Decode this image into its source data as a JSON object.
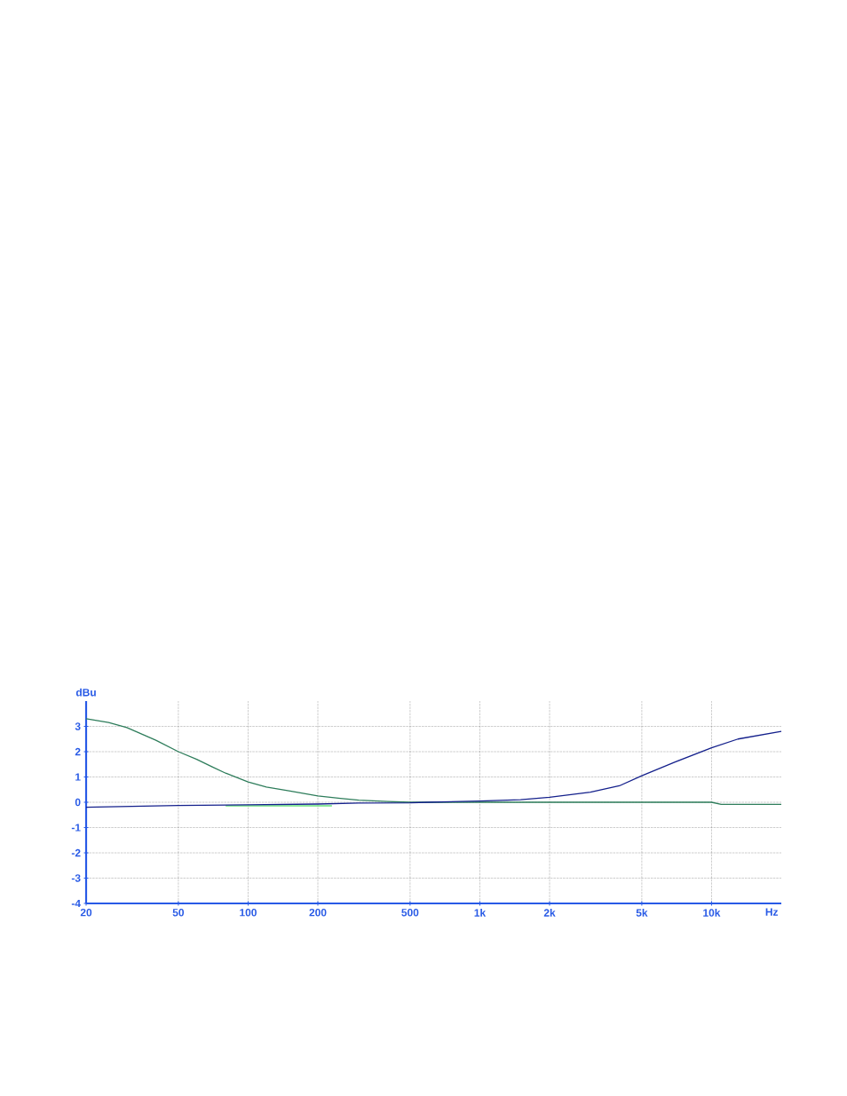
{
  "chart_data": {
    "type": "line",
    "xlabel": "Hz",
    "ylabel": "dBu",
    "log": "x",
    "xlim": [
      20,
      20000
    ],
    "ylim": [
      -4,
      4
    ],
    "xticks": [
      {
        "value": 20,
        "label": "20"
      },
      {
        "value": 50,
        "label": "50"
      },
      {
        "value": 100,
        "label": "100"
      },
      {
        "value": 200,
        "label": "200"
      },
      {
        "value": 500,
        "label": "500"
      },
      {
        "value": 1000,
        "label": "1k"
      },
      {
        "value": 2000,
        "label": "2k"
      },
      {
        "value": 5000,
        "label": "5k"
      },
      {
        "value": 10000,
        "label": "10k"
      }
    ],
    "yticks": [
      -4,
      -3,
      -2,
      -1,
      0,
      1,
      2,
      3
    ],
    "grid": true,
    "marker": "none",
    "line_style": "solid",
    "series": [
      {
        "color": "#66e07a",
        "x": [
          80,
          230
        ],
        "values": [
          -0.14,
          -0.14
        ]
      },
      {
        "color": "#2e7d5b",
        "x": [
          20,
          25,
          30,
          40,
          50,
          60,
          70,
          80,
          100,
          120,
          150,
          200,
          250,
          300,
          400,
          500,
          1000,
          2000,
          5000,
          10000,
          11000,
          20000
        ],
        "values": [
          3.3,
          3.15,
          2.95,
          2.45,
          2.0,
          1.7,
          1.4,
          1.15,
          0.8,
          0.6,
          0.45,
          0.25,
          0.15,
          0.08,
          0.03,
          0.0,
          0.0,
          0.0,
          0.0,
          0.0,
          -0.08,
          -0.08
        ]
      },
      {
        "color": "#14208c",
        "x": [
          20,
          25,
          50,
          100,
          200,
          300,
          500,
          600,
          1000,
          1500,
          2000,
          3000,
          4000,
          5000,
          7000,
          10000,
          13000,
          20000
        ],
        "values": [
          -0.2,
          -0.18,
          -0.13,
          -0.1,
          -0.07,
          -0.03,
          -0.02,
          0.0,
          0.05,
          0.1,
          0.2,
          0.4,
          0.65,
          1.05,
          1.6,
          2.15,
          2.5,
          2.8
        ]
      }
    ]
  }
}
